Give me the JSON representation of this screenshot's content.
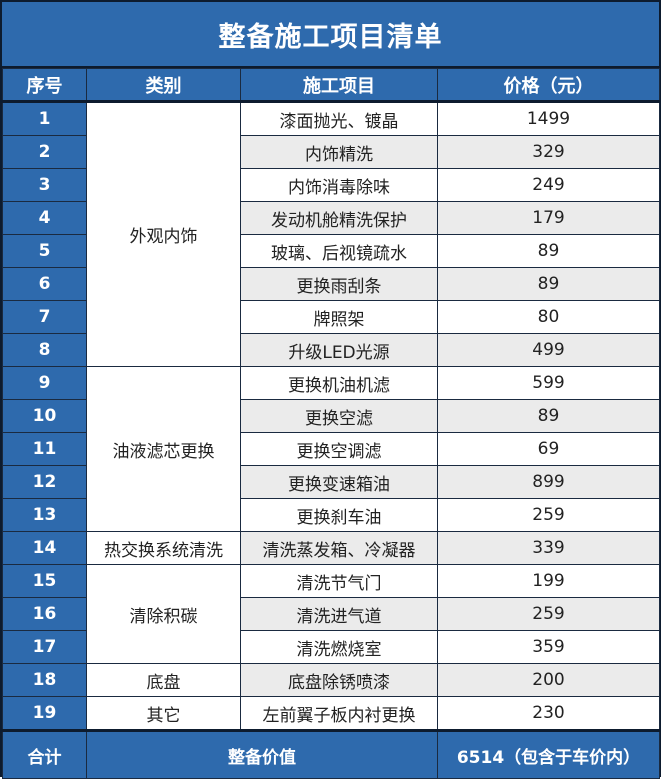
{
  "title": "整备施工项目清单",
  "headers": {
    "seq": "序号",
    "category": "类别",
    "item": "施工项目",
    "price": "价格（元）"
  },
  "groups": [
    {
      "category": "外观内饰",
      "rows": [
        {
          "seq": "1",
          "item": "漆面抛光、镀晶",
          "price": "1499"
        },
        {
          "seq": "2",
          "item": "内饰精洗",
          "price": "329"
        },
        {
          "seq": "3",
          "item": "内饰消毒除味",
          "price": "249"
        },
        {
          "seq": "4",
          "item": "发动机舱精洗保护",
          "price": "179"
        },
        {
          "seq": "5",
          "item": "玻璃、后视镜疏水",
          "price": "89"
        },
        {
          "seq": "6",
          "item": "更换雨刮条",
          "price": "89"
        },
        {
          "seq": "7",
          "item": "牌照架",
          "price": "80"
        },
        {
          "seq": "8",
          "item": "升级LED光源",
          "price": "499"
        }
      ]
    },
    {
      "category": "油液滤芯更换",
      "rows": [
        {
          "seq": "9",
          "item": "更换机油机滤",
          "price": "599"
        },
        {
          "seq": "10",
          "item": "更换空滤",
          "price": "89"
        },
        {
          "seq": "11",
          "item": "更换空调滤",
          "price": "69"
        },
        {
          "seq": "12",
          "item": "更换变速箱油",
          "price": "899"
        },
        {
          "seq": "13",
          "item": "更换刹车油",
          "price": "259"
        }
      ]
    },
    {
      "category": "热交换系统清洗",
      "rows": [
        {
          "seq": "14",
          "item": "清洗蒸发箱、冷凝器",
          "price": "339"
        }
      ]
    },
    {
      "category": "清除积碳",
      "rows": [
        {
          "seq": "15",
          "item": "清洗节气门",
          "price": "199"
        },
        {
          "seq": "16",
          "item": "清洗进气道",
          "price": "259"
        },
        {
          "seq": "17",
          "item": "清洗燃烧室",
          "price": "359"
        }
      ]
    },
    {
      "category": "底盘",
      "rows": [
        {
          "seq": "18",
          "item": "底盘除锈喷漆",
          "price": "200"
        }
      ]
    },
    {
      "category": "其它",
      "rows": [
        {
          "seq": "19",
          "item": "左前翼子板内衬更换",
          "price": "230"
        }
      ]
    }
  ],
  "footer": {
    "label": "合计",
    "value_label": "整备价值",
    "total": "6514（包含于车价内）"
  },
  "colors": {
    "header_blue": "#2e6aad",
    "stripe_gray": "#ebebeb"
  }
}
